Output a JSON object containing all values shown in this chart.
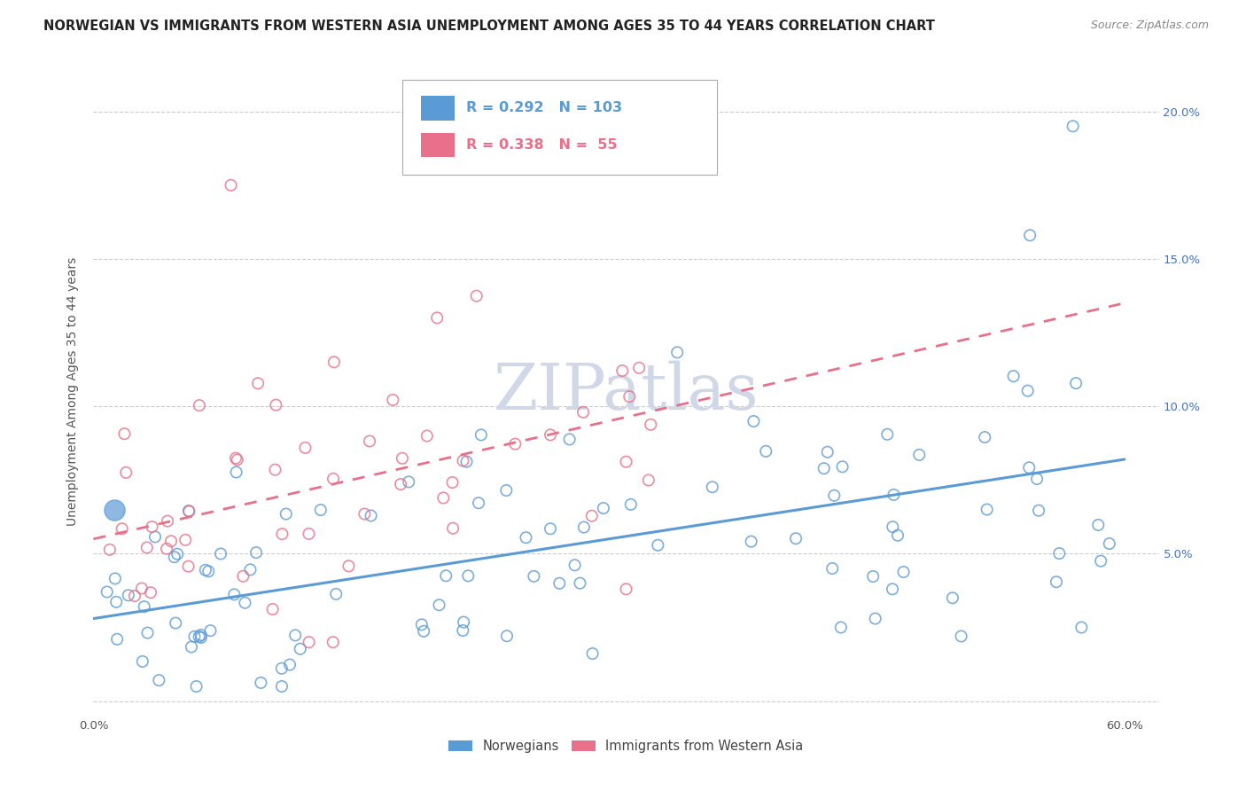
{
  "title": "NORWEGIAN VS IMMIGRANTS FROM WESTERN ASIA UNEMPLOYMENT AMONG AGES 35 TO 44 YEARS CORRELATION CHART",
  "source": "Source: ZipAtlas.com",
  "ylabel": "Unemployment Among Ages 35 to 44 years",
  "xlim": [
    0.0,
    0.62
  ],
  "ylim": [
    -0.005,
    0.215
  ],
  "xticks": [
    0.0,
    0.1,
    0.2,
    0.3,
    0.4,
    0.5,
    0.6
  ],
  "xticklabels": [
    "0.0%",
    "",
    "",
    "",
    "",
    "",
    "60.0%"
  ],
  "yticks": [
    0.0,
    0.05,
    0.1,
    0.15,
    0.2
  ],
  "yticklabels_right": [
    "",
    "5.0%",
    "10.0%",
    "15.0%",
    "20.0%"
  ],
  "legend_labels": [
    "Norwegians",
    "Immigrants from Western Asia"
  ],
  "blue_color": "#5B9BD5",
  "pink_color": "#E8708A",
  "R_blue": 0.292,
  "N_blue": 103,
  "R_pink": 0.338,
  "N_pink": 55,
  "blue_trend_x0": 0.0,
  "blue_trend_y0": 0.028,
  "blue_trend_x1": 0.6,
  "blue_trend_y1": 0.082,
  "pink_trend_x0": 0.0,
  "pink_trend_y0": 0.055,
  "pink_trend_x1": 0.6,
  "pink_trend_y1": 0.135,
  "title_fontsize": 10.5,
  "source_fontsize": 9,
  "axis_label_fontsize": 10,
  "tick_fontsize": 9.5
}
